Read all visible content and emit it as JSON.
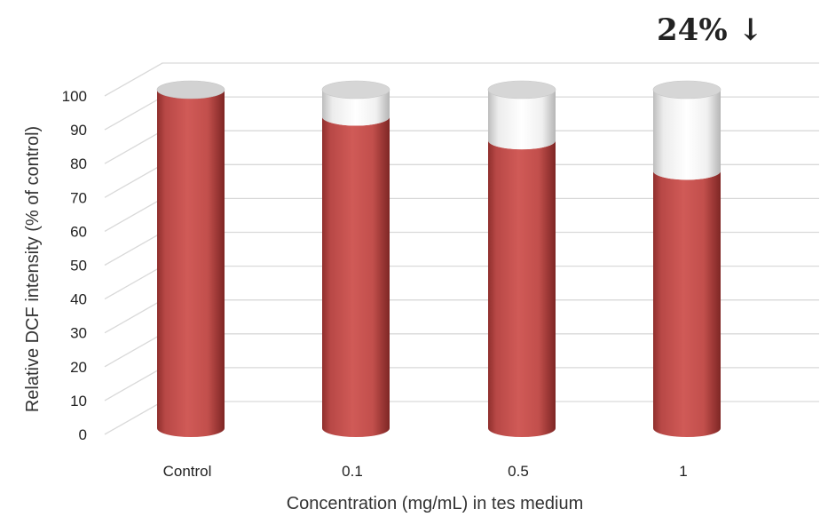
{
  "chart_data": {
    "type": "bar",
    "style": "3d-cylinder",
    "categories": [
      "Control",
      "0.1",
      "0.5",
      "1"
    ],
    "values": [
      100,
      92,
      85,
      76
    ],
    "remainder_to": 100,
    "ylabel": "Relative DCF intensity (% of control)",
    "xlabel": "Concentration (mg/mL) in tes medium",
    "ylim": [
      0,
      100
    ],
    "yticks": [
      0,
      10,
      20,
      30,
      40,
      50,
      60,
      70,
      80,
      90,
      100
    ],
    "grid": true,
    "annotation": "24% ↓",
    "colors": {
      "bar": "#c0504d",
      "remainder": "#ffffff",
      "grid": "#d9d9d9"
    }
  }
}
